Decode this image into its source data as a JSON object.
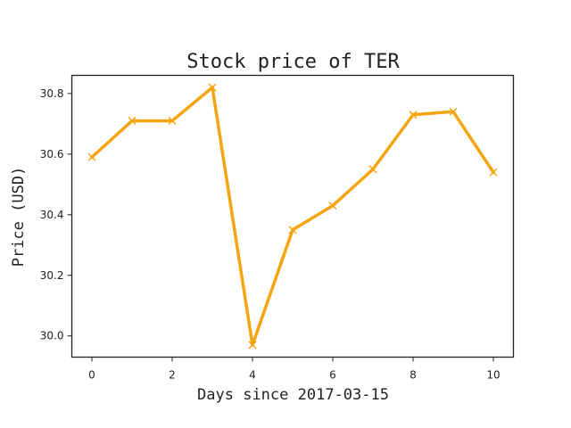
{
  "chart_data": {
    "type": "line",
    "title": "Stock price of TER",
    "xlabel": "Days since 2017-03-15",
    "ylabel": "Price (USD)",
    "x": [
      0,
      1,
      2,
      3,
      4,
      5,
      6,
      7,
      8,
      9,
      10
    ],
    "series": [
      {
        "values": [
          30.59,
          30.71,
          30.71,
          30.82,
          29.97,
          30.35,
          30.43,
          30.55,
          30.73,
          30.74,
          30.54
        ],
        "color": "#f5a511",
        "marker": "x"
      }
    ],
    "xlim": [
      -0.5,
      10.5
    ],
    "ylim": [
      29.93,
      30.86
    ],
    "xticks": [
      "0",
      "2",
      "4",
      "6",
      "8",
      "10"
    ],
    "yticks": [
      "30.0",
      "30.2",
      "30.4",
      "30.6",
      "30.8"
    ],
    "grid": false,
    "legend": "none"
  }
}
